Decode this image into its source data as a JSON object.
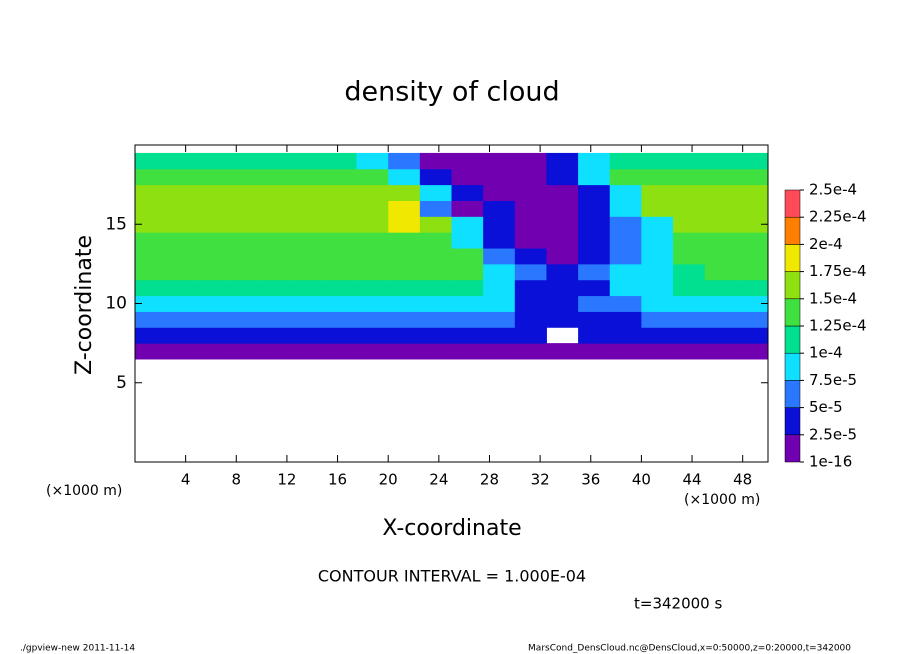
{
  "chart_data": {
    "type": "heatmap",
    "title": "density of cloud",
    "x_label": "X-coordinate",
    "y_label": "Z-coordinate",
    "x_unit_label": "(×1000 m)",
    "annotations": [
      "CONTOUR INTERVAL = 1.000E-04",
      "t=342000 s"
    ],
    "footer_left": "./gpview-new   2011-11-14",
    "footer_right": "MarsCond_DensCloud.nc@DensCloud,x=0:50000,z=0:20000,t=342000",
    "xlim": [
      0,
      50
    ],
    "ylim": [
      0,
      20
    ],
    "xticks": [
      4,
      8,
      12,
      16,
      20,
      24,
      28,
      32,
      36,
      40,
      44,
      48
    ],
    "yticks": [
      5,
      10,
      15
    ],
    "x_edges": [
      0,
      2.5,
      5,
      7.5,
      10,
      12.5,
      15,
      17.5,
      20,
      22.5,
      25,
      27.5,
      30,
      32.5,
      35,
      37.5,
      40,
      42.5,
      45,
      47.5,
      50
    ],
    "y_edges": [
      6.5,
      7.5,
      8.5,
      9.5,
      10.5,
      11.5,
      12.5,
      13.5,
      14.5,
      15.5,
      16.5,
      17.5,
      18.5,
      19.5
    ],
    "values": [
      [
        1e-05,
        1e-05,
        1e-05,
        1e-05,
        1e-05,
        1e-05,
        1e-05,
        1e-05,
        1e-05,
        1e-05,
        1e-05,
        1e-05,
        1e-05,
        1e-05,
        1e-05,
        1e-05,
        1e-05,
        1e-05,
        1e-05,
        1e-05
      ],
      [
        3.5e-05,
        3.5e-05,
        3.5e-05,
        3.5e-05,
        3.5e-05,
        3.5e-05,
        3.5e-05,
        3.5e-05,
        3.5e-05,
        3.5e-05,
        3.5e-05,
        3.5e-05,
        3.5e-05,
        null,
        3.5e-05,
        3.5e-05,
        3.5e-05,
        3.5e-05,
        3.5e-05,
        3.5e-05
      ],
      [
        6e-05,
        6e-05,
        6e-05,
        6e-05,
        6e-05,
        6e-05,
        6e-05,
        6e-05,
        6e-05,
        6e-05,
        6e-05,
        6e-05,
        3.5e-05,
        3.5e-05,
        3.5e-05,
        3.5e-05,
        6e-05,
        6e-05,
        6e-05,
        6e-05
      ],
      [
        8.5e-05,
        8.5e-05,
        8.5e-05,
        8.5e-05,
        8.5e-05,
        8.5e-05,
        8.5e-05,
        8.5e-05,
        8.5e-05,
        8.5e-05,
        8.5e-05,
        8.5e-05,
        3.5e-05,
        3.5e-05,
        6e-05,
        6e-05,
        8.5e-05,
        8.5e-05,
        8.5e-05,
        8.5e-05
      ],
      [
        0.00011,
        0.00011,
        0.00011,
        0.00011,
        0.00011,
        0.00011,
        0.00011,
        0.00011,
        0.00011,
        0.00011,
        0.00011,
        8.5e-05,
        3.5e-05,
        3.5e-05,
        3.5e-05,
        8.5e-05,
        8.5e-05,
        0.00011,
        0.00011,
        0.00011
      ],
      [
        0.000135,
        0.000135,
        0.000135,
        0.000135,
        0.000135,
        0.000135,
        0.000135,
        0.000135,
        0.000135,
        0.000135,
        0.000135,
        8.5e-05,
        6e-05,
        3.5e-05,
        6e-05,
        8.5e-05,
        8.5e-05,
        0.00011,
        0.000135,
        0.000135
      ],
      [
        0.000135,
        0.000135,
        0.000135,
        0.000135,
        0.000135,
        0.000135,
        0.000135,
        0.000135,
        0.000135,
        0.000135,
        0.000135,
        6e-05,
        3.5e-05,
        1e-05,
        3.5e-05,
        6e-05,
        8.5e-05,
        0.000135,
        0.000135,
        0.000135
      ],
      [
        0.000135,
        0.000135,
        0.000135,
        0.000135,
        0.000135,
        0.000135,
        0.000135,
        0.000135,
        0.000135,
        0.000135,
        8.5e-05,
        3.5e-05,
        1e-05,
        1e-05,
        3.5e-05,
        6e-05,
        8.5e-05,
        0.000135,
        0.000135,
        0.000135
      ],
      [
        0.000155,
        0.000155,
        0.000155,
        0.000155,
        0.000155,
        0.000155,
        0.000155,
        0.000155,
        0.00018,
        0.000155,
        8.5e-05,
        3.5e-05,
        1e-05,
        1e-05,
        3.5e-05,
        6e-05,
        8.5e-05,
        0.000155,
        0.000155,
        0.000155
      ],
      [
        0.000155,
        0.000155,
        0.000155,
        0.000155,
        0.000155,
        0.000155,
        0.000155,
        0.000155,
        0.00018,
        6e-05,
        1e-05,
        3.5e-05,
        1e-05,
        1e-05,
        3.5e-05,
        8.5e-05,
        0.000155,
        0.000155,
        0.000155,
        0.000155
      ],
      [
        0.000155,
        0.000155,
        0.000155,
        0.000155,
        0.000155,
        0.000155,
        0.000155,
        0.000155,
        0.000155,
        8.5e-05,
        3.5e-05,
        1e-05,
        1e-05,
        1e-05,
        3.5e-05,
        8.5e-05,
        0.000155,
        0.000155,
        0.000155,
        0.000155
      ],
      [
        0.000135,
        0.000135,
        0.000135,
        0.000135,
        0.000135,
        0.000135,
        0.000135,
        0.000135,
        8.5e-05,
        3.5e-05,
        1e-05,
        1e-05,
        1e-05,
        3.5e-05,
        8.5e-05,
        0.000135,
        0.000135,
        0.000135,
        0.000135,
        0.000135
      ],
      [
        0.00011,
        0.00011,
        0.00011,
        0.00011,
        0.00011,
        0.00011,
        0.00011,
        8.5e-05,
        6e-05,
        1e-05,
        1e-05,
        1e-05,
        1e-05,
        3.5e-05,
        8.5e-05,
        0.00011,
        0.00011,
        0.00011,
        0.00011,
        0.00011
      ]
    ],
    "colorbar": {
      "levels": [
        {
          "value": 1e-16,
          "label": "1e-16"
        },
        {
          "value": 2.5e-05,
          "label": "2.5e-5"
        },
        {
          "value": 5e-05,
          "label": "5e-5"
        },
        {
          "value": 7.5e-05,
          "label": "7.5e-5"
        },
        {
          "value": 0.0001,
          "label": "1e-4"
        },
        {
          "value": 0.000125,
          "label": "1.25e-4"
        },
        {
          "value": 0.00015,
          "label": "1.5e-4"
        },
        {
          "value": 0.000175,
          "label": "1.75e-4"
        },
        {
          "value": 0.0002,
          "label": "2e-4"
        },
        {
          "value": 0.000225,
          "label": "2.25e-4"
        },
        {
          "value": 0.00025,
          "label": "2.5e-4"
        }
      ],
      "colors": [
        "#7000b0",
        "#0a10d8",
        "#2a78ff",
        "#10e0ff",
        "#00e090",
        "#40e040",
        "#8ee010",
        "#f0e800",
        "#ff8000",
        "#ff4a5a"
      ]
    }
  }
}
